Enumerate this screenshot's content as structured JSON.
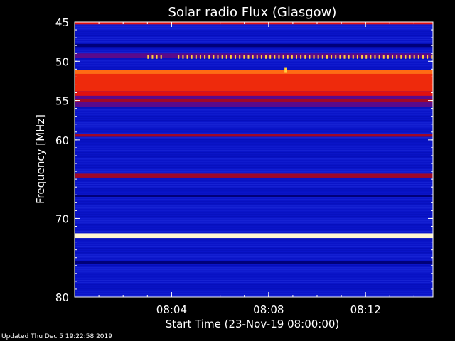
{
  "chart_data": {
    "type": "heatmap",
    "title": "Solar radio Flux (Glasgow)",
    "xlabel": "Start Time (23-Nov-19 08:00:00)",
    "ylabel": "Frequency [MHz]",
    "x_unit": "minutes after 08:00:00",
    "xlim": [
      0,
      14.78
    ],
    "ylim": [
      45,
      80
    ],
    "y_axis_orientation": "increasing-downward",
    "x_tick_values": [
      4,
      8,
      12
    ],
    "x_tick_labels": [
      "08:04",
      "08:08",
      "08:12"
    ],
    "y_tick_values": [
      45,
      50,
      55,
      60,
      70,
      80
    ],
    "y_tick_labels": [
      "45",
      "50",
      "55",
      "60",
      "70",
      "80"
    ],
    "background_color": "#0a14c8",
    "bands": [
      {
        "from": 45.0,
        "to": 45.3,
        "level": "red"
      },
      {
        "from": 47.8,
        "to": 48.2,
        "level": "dark-blue"
      },
      {
        "from": 49.0,
        "to": 49.6,
        "level": "purple"
      },
      {
        "from": 51.1,
        "to": 51.6,
        "level": "orange"
      },
      {
        "from": 51.6,
        "to": 53.8,
        "level": "red-orange"
      },
      {
        "from": 53.8,
        "to": 54.4,
        "level": "red"
      },
      {
        "from": 54.4,
        "to": 54.8,
        "level": "purple"
      },
      {
        "from": 54.8,
        "to": 55.2,
        "level": "dark-red"
      },
      {
        "from": 55.2,
        "to": 55.8,
        "level": "purple"
      },
      {
        "from": 59.2,
        "to": 59.6,
        "level": "dark-red"
      },
      {
        "from": 64.3,
        "to": 64.8,
        "level": "dark-red"
      },
      {
        "from": 67.0,
        "to": 67.3,
        "level": "dark-blue"
      },
      {
        "from": 71.9,
        "to": 72.5,
        "level": "yellow-white"
      },
      {
        "from": 75.4,
        "to": 75.8,
        "level": "dark-blue"
      }
    ],
    "intermittent_band": {
      "freq": 49.5,
      "from_min": 3.0,
      "to_min": 14.78,
      "level": "yellow"
    },
    "spike": {
      "min": 8.7,
      "freq": 51.2,
      "level": "yellow"
    },
    "level_colors": {
      "dark-blue": "#00007a",
      "purple": "#5a0a8c",
      "dark-red": "#a00828",
      "red": "#e01010",
      "red-orange": "#ee2a0c",
      "orange": "#ff6a14",
      "yellow": "#ffd040",
      "yellow-white": "#fff6d0"
    }
  },
  "footer": "Updated Thu Dec  5 19:22:58 2019"
}
